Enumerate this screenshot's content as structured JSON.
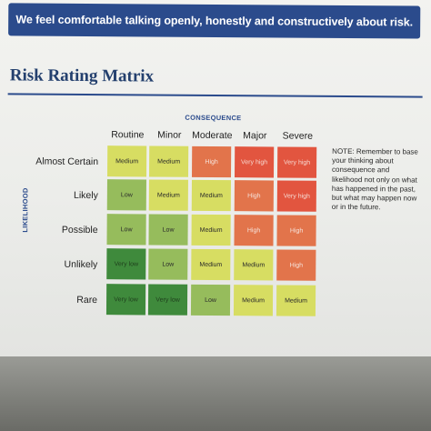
{
  "banner": {
    "text": "We feel comfortable talking openly, honestly and constructively about risk."
  },
  "title": "Risk Rating Matrix",
  "matrix": {
    "consequence_label": "CONSEQUENCE",
    "likelihood_label": "LIKELIHOOD",
    "columns": [
      "Routine",
      "Minor",
      "Moderate",
      "Major",
      "Severe"
    ],
    "rows": [
      {
        "label": "Almost Certain",
        "cells": [
          "Medium",
          "Medium",
          "High",
          "Very high",
          "Very high"
        ]
      },
      {
        "label": "Likely",
        "cells": [
          "Low",
          "Medium",
          "Medium",
          "High",
          "Very high"
        ]
      },
      {
        "label": "Possible",
        "cells": [
          "Low",
          "Low",
          "Medium",
          "High",
          "High"
        ]
      },
      {
        "label": "Unlikely",
        "cells": [
          "Very low",
          "Low",
          "Medium",
          "Medium",
          "High"
        ]
      },
      {
        "label": "Rare",
        "cells": [
          "Very low",
          "Very low",
          "Low",
          "Medium",
          "Medium"
        ]
      }
    ]
  },
  "colors": {
    "banner": "#2b4b8c",
    "title": "#24406e",
    "rating": {
      "Very low": "#3f8a3c",
      "Low": "#96bc5c",
      "Medium": "#d7dd62",
      "High": "#e2744b",
      "Very high": "#e2553f"
    },
    "rating_text": {
      "Very low": "#1e3d1c",
      "Low": "#2a2a2a",
      "Medium": "#2a2a2a",
      "High": "#f6e4dc",
      "Very high": "#f6d8d0"
    }
  },
  "note": "NOTE: Remember to base your thinking about consequence and likelihood not only on what has happened in the past, but what may happen now or in the future."
}
